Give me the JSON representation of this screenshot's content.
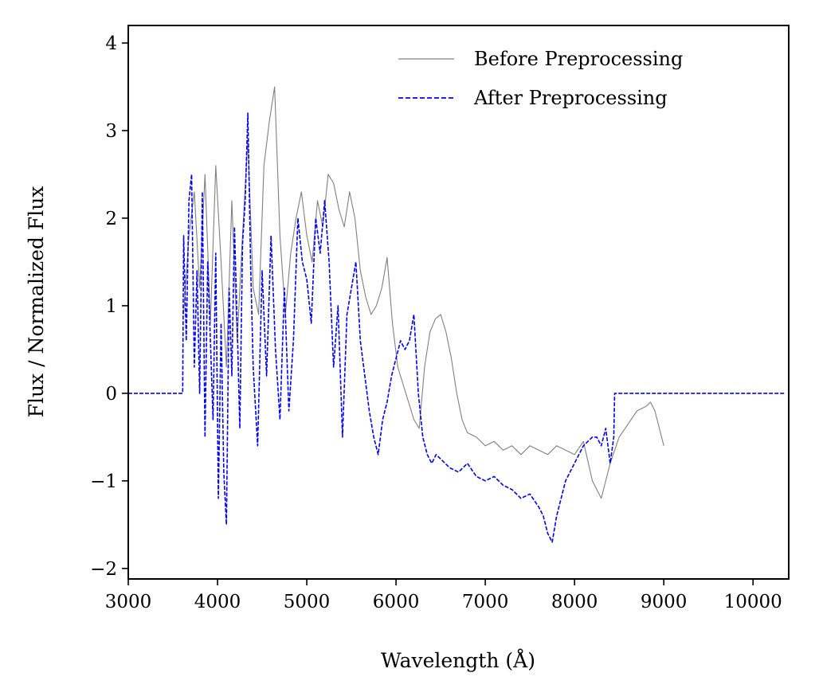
{
  "chart_data": {
    "type": "line",
    "title": "",
    "xlabel": "Wavelength (Å)",
    "ylabel": "Flux / Normalized Flux",
    "xlim": [
      3000,
      10400
    ],
    "ylim": [
      -2.12,
      4.2
    ],
    "xticks": [
      3000,
      4000,
      5000,
      6000,
      7000,
      8000,
      9000,
      10000
    ],
    "xtick_labels": [
      "3000",
      "4000",
      "5000",
      "6000",
      "7000",
      "8000",
      "9000",
      "10000"
    ],
    "yticks": [
      -2,
      -1,
      0,
      1,
      2,
      3,
      4
    ],
    "ytick_labels": [
      "−2",
      "−1",
      "0",
      "1",
      "2",
      "3",
      "4"
    ],
    "legend_position": "top-right",
    "series": [
      {
        "name": "Before Preprocessing",
        "color": "#808080",
        "style": "solid",
        "x": [
          3620,
          3680,
          3740,
          3800,
          3860,
          3920,
          3980,
          4040,
          4100,
          4160,
          4220,
          4280,
          4340,
          4400,
          4460,
          4520,
          4580,
          4640,
          4700,
          4760,
          4820,
          4880,
          4940,
          5000,
          5060,
          5120,
          5180,
          5240,
          5300,
          5360,
          5420,
          5480,
          5540,
          5600,
          5660,
          5720,
          5780,
          5840,
          5900,
          5960,
          6020,
          6080,
          6140,
          6200,
          6260,
          6320,
          6380,
          6440,
          6500,
          6560,
          6620,
          6680,
          6740,
          6800,
          6900,
          7000,
          7100,
          7200,
          7300,
          7400,
          7500,
          7600,
          7700,
          7800,
          7900,
          8000,
          8100,
          8200,
          8300,
          8400,
          8500,
          8600,
          8700,
          8800,
          8850,
          8900,
          8950,
          9000
        ],
        "y": [
          0.9,
          1.8,
          2.3,
          1.2,
          2.5,
          0.8,
          2.6,
          1.5,
          0.3,
          2.2,
          0.6,
          1.8,
          2.9,
          1.2,
          0.9,
          2.6,
          3.1,
          3.5,
          1.8,
          0.9,
          1.6,
          2.0,
          2.3,
          1.8,
          1.5,
          2.2,
          1.9,
          2.5,
          2.4,
          2.1,
          1.9,
          2.3,
          2.0,
          1.4,
          1.1,
          0.9,
          1.0,
          1.2,
          1.55,
          0.8,
          0.3,
          0.1,
          -0.1,
          -0.3,
          -0.4,
          0.3,
          0.7,
          0.85,
          0.9,
          0.7,
          0.4,
          0.0,
          -0.3,
          -0.45,
          -0.5,
          -0.6,
          -0.55,
          -0.65,
          -0.6,
          -0.7,
          -0.6,
          -0.65,
          -0.7,
          -0.6,
          -0.65,
          -0.7,
          -0.55,
          -1.0,
          -1.2,
          -0.8,
          -0.5,
          -0.35,
          -0.2,
          -0.15,
          -0.1,
          -0.2,
          -0.4,
          -0.6
        ]
      },
      {
        "name": "After Preprocessing",
        "color": "#0000ff",
        "style": "dashed",
        "x": [
          3000,
          3610,
          3620,
          3650,
          3680,
          3710,
          3740,
          3770,
          3800,
          3830,
          3860,
          3890,
          3920,
          3950,
          3980,
          4010,
          4040,
          4070,
          4100,
          4130,
          4160,
          4190,
          4220,
          4250,
          4280,
          4310,
          4340,
          4370,
          4400,
          4450,
          4500,
          4550,
          4600,
          4650,
          4700,
          4750,
          4800,
          4850,
          4900,
          4950,
          5000,
          5050,
          5100,
          5150,
          5200,
          5250,
          5300,
          5350,
          5400,
          5450,
          5500,
          5550,
          5600,
          5650,
          5700,
          5750,
          5800,
          5850,
          5900,
          5950,
          6000,
          6050,
          6100,
          6150,
          6200,
          6250,
          6300,
          6350,
          6400,
          6450,
          6500,
          6600,
          6700,
          6800,
          6900,
          7000,
          7100,
          7200,
          7300,
          7400,
          7500,
          7600,
          7650,
          7700,
          7750,
          7800,
          7850,
          7900,
          7950,
          8000,
          8050,
          8100,
          8150,
          8200,
          8250,
          8300,
          8350,
          8400,
          8440,
          8450,
          9000,
          10350
        ],
        "y": [
          0.0,
          0.0,
          1.8,
          0.6,
          2.2,
          2.5,
          0.3,
          1.4,
          0.0,
          2.3,
          -0.5,
          1.5,
          0.6,
          -0.3,
          1.6,
          -1.2,
          0.8,
          -0.9,
          -1.5,
          1.2,
          0.2,
          1.9,
          0.8,
          -0.4,
          1.7,
          2.2,
          3.2,
          1.5,
          0.3,
          -0.6,
          1.4,
          0.2,
          1.8,
          0.5,
          -0.3,
          1.2,
          -0.2,
          0.6,
          2.0,
          1.5,
          1.3,
          0.8,
          2.0,
          1.6,
          2.2,
          1.5,
          0.3,
          1.0,
          -0.5,
          0.9,
          1.2,
          1.5,
          0.6,
          0.2,
          -0.2,
          -0.5,
          -0.7,
          -0.3,
          -0.1,
          0.2,
          0.4,
          0.6,
          0.5,
          0.6,
          0.9,
          0.0,
          -0.5,
          -0.7,
          -0.8,
          -0.7,
          -0.75,
          -0.85,
          -0.9,
          -0.8,
          -0.95,
          -1.0,
          -0.95,
          -1.05,
          -1.1,
          -1.2,
          -1.15,
          -1.3,
          -1.4,
          -1.6,
          -1.7,
          -1.4,
          -1.2,
          -1.0,
          -0.9,
          -0.8,
          -0.7,
          -0.6,
          -0.55,
          -0.5,
          -0.5,
          -0.6,
          -0.4,
          -0.8,
          -0.5,
          0.0,
          0.0,
          0.0
        ]
      }
    ]
  }
}
